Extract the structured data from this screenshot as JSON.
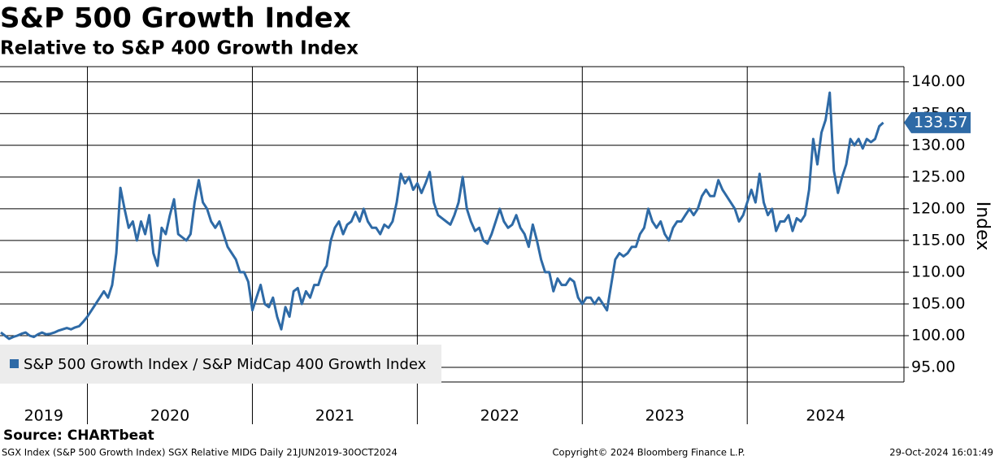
{
  "chart_data": {
    "type": "line",
    "title": "S&P 500 Growth Index",
    "subtitle": "Relative to S&P 400 Growth Index",
    "y_label": "Index",
    "source": "Source: CHARTbeat",
    "footer_left": "SGX Index (S&P 500 Growth Index) SGX Relative MIDG  Daily 21JUN2019-30OCT2024",
    "footer_center": "Copyright© 2024 Bloomberg Finance L.P.",
    "footer_right": "29-Oct-2024 16:01:49",
    "year_labels": [
      "2019",
      "2020",
      "2021",
      "2022",
      "2023",
      "2024"
    ],
    "xlim": [
      2019.47,
      2024.95
    ],
    "xticks": [
      2020,
      2021,
      2022,
      2023,
      2024
    ],
    "ylim": [
      92.7,
      142.4
    ],
    "yticks": [
      {
        "value": 95,
        "label": "95.00"
      },
      {
        "value": 100,
        "label": "100.00"
      },
      {
        "value": 105,
        "label": "105.00"
      },
      {
        "value": 110,
        "label": "110.00"
      },
      {
        "value": 115,
        "label": "115.00"
      },
      {
        "value": 120,
        "label": "120.00"
      },
      {
        "value": 125,
        "label": "125.00"
      },
      {
        "value": 130,
        "label": "130.00"
      },
      {
        "value": 135,
        "label": "135.00"
      },
      {
        "value": 140,
        "label": "140.00"
      }
    ],
    "grid": true,
    "legend": "bottom-left",
    "x": [
      2019.475,
      2019.5,
      2019.525,
      2019.55,
      2019.575,
      2019.6,
      2019.625,
      2019.65,
      2019.675,
      2019.7,
      2019.725,
      2019.75,
      2019.775,
      2019.8,
      2019.825,
      2019.85,
      2019.875,
      2019.9,
      2019.925,
      2019.95,
      2019.975,
      2020,
      2020.025,
      2020.05,
      2020.075,
      2020.1,
      2020.125,
      2020.15,
      2020.175,
      2020.2,
      2020.225,
      2020.25,
      2020.275,
      2020.3,
      2020.325,
      2020.35,
      2020.375,
      2020.4,
      2020.425,
      2020.45,
      2020.475,
      2020.5,
      2020.525,
      2020.55,
      2020.575,
      2020.6,
      2020.625,
      2020.65,
      2020.675,
      2020.7,
      2020.725,
      2020.75,
      2020.775,
      2020.8,
      2020.825,
      2020.85,
      2020.875,
      2020.9,
      2020.925,
      2020.95,
      2020.975,
      2021,
      2021.025,
      2021.05,
      2021.075,
      2021.1,
      2021.125,
      2021.15,
      2021.175,
      2021.2,
      2021.225,
      2021.25,
      2021.275,
      2021.3,
      2021.325,
      2021.35,
      2021.375,
      2021.4,
      2021.425,
      2021.45,
      2021.475,
      2021.5,
      2021.525,
      2021.55,
      2021.575,
      2021.6,
      2021.625,
      2021.65,
      2021.675,
      2021.7,
      2021.725,
      2021.75,
      2021.775,
      2021.8,
      2021.825,
      2021.85,
      2021.875,
      2021.9,
      2021.925,
      2021.95,
      2021.975,
      2022,
      2022.025,
      2022.05,
      2022.075,
      2022.1,
      2022.125,
      2022.15,
      2022.175,
      2022.2,
      2022.225,
      2022.25,
      2022.275,
      2022.3,
      2022.325,
      2022.35,
      2022.375,
      2022.4,
      2022.425,
      2022.45,
      2022.475,
      2022.5,
      2022.525,
      2022.55,
      2022.575,
      2022.6,
      2022.625,
      2022.65,
      2022.675,
      2022.7,
      2022.725,
      2022.75,
      2022.775,
      2022.8,
      2022.825,
      2022.85,
      2022.875,
      2022.9,
      2022.925,
      2022.95,
      2022.975,
      2023,
      2023.025,
      2023.05,
      2023.075,
      2023.1,
      2023.125,
      2023.15,
      2023.175,
      2023.2,
      2023.225,
      2023.25,
      2023.275,
      2023.3,
      2023.325,
      2023.35,
      2023.375,
      2023.4,
      2023.425,
      2023.45,
      2023.475,
      2023.5,
      2023.525,
      2023.55,
      2023.575,
      2023.6,
      2023.625,
      2023.65,
      2023.675,
      2023.7,
      2023.725,
      2023.75,
      2023.775,
      2023.8,
      2023.825,
      2023.85,
      2023.875,
      2023.9,
      2023.925,
      2023.95,
      2023.975,
      2024,
      2024.025,
      2024.05,
      2024.075,
      2024.1,
      2024.125,
      2024.15,
      2024.175,
      2024.2,
      2024.225,
      2024.25,
      2024.275,
      2024.3,
      2024.325,
      2024.35,
      2024.375,
      2024.4,
      2024.425,
      2024.45,
      2024.475,
      2024.5,
      2024.525,
      2024.55,
      2024.575,
      2024.6,
      2024.625,
      2024.65,
      2024.675,
      2024.7,
      2024.725,
      2024.75,
      2024.775,
      2024.8,
      2024.825
    ],
    "series": [
      {
        "name": "S&P 500 Growth Index / S&P MidCap 400 Growth Index",
        "color": "#2e6aa6",
        "values": [
          100.5,
          100,
          99.5,
          99.8,
          100,
          100.3,
          100.5,
          100,
          99.8,
          100.2,
          100.5,
          100.2,
          100.3,
          100.5,
          100.8,
          101,
          101.2,
          101,
          101.3,
          101.5,
          102.2,
          103,
          104,
          105,
          106,
          107,
          106,
          108,
          113,
          123.3,
          120,
          117,
          118,
          115,
          118,
          116,
          119,
          113,
          111,
          117,
          116,
          119,
          121.5,
          116,
          115.5,
          115,
          116,
          121,
          124.5,
          121,
          120,
          118,
          117,
          118,
          116,
          114,
          113,
          112,
          110,
          110,
          108.5,
          104,
          106,
          108,
          105,
          104.5,
          106,
          103,
          101,
          104.5,
          103,
          107,
          107.5,
          105,
          107,
          106,
          108,
          108,
          110,
          111,
          115,
          117,
          118,
          116,
          117.5,
          118,
          119.5,
          118,
          120,
          118,
          117,
          117,
          116,
          117.5,
          117,
          118,
          121,
          125.5,
          124,
          125,
          123,
          124,
          122.5,
          124,
          125.8,
          121,
          119,
          118.5,
          118,
          117.5,
          119,
          121,
          125,
          120,
          118,
          116.5,
          117,
          115,
          114.5,
          116,
          118,
          120,
          118,
          117,
          117.5,
          119,
          117,
          116,
          114,
          117.5,
          115,
          112,
          110,
          110,
          107,
          109,
          108,
          108,
          109,
          108.5,
          106,
          105,
          106,
          106,
          105,
          106,
          105,
          104,
          108,
          112,
          113,
          112.5,
          113,
          114,
          114,
          116,
          117,
          120,
          118,
          117,
          118,
          116,
          115,
          117,
          118,
          118,
          119,
          120,
          119,
          120,
          122,
          123,
          122,
          122,
          124.5,
          123,
          122,
          121,
          120,
          118,
          119,
          121,
          123,
          121,
          125.5,
          121,
          119,
          120,
          116.5,
          118,
          118,
          119,
          116.5,
          118.5,
          118,
          119,
          123,
          131,
          127,
          132,
          134,
          138.3,
          126,
          122.5,
          125,
          127,
          131,
          130,
          131,
          129.5,
          131,
          130.5,
          131,
          133,
          133.57
        ]
      }
    ]
  }
}
